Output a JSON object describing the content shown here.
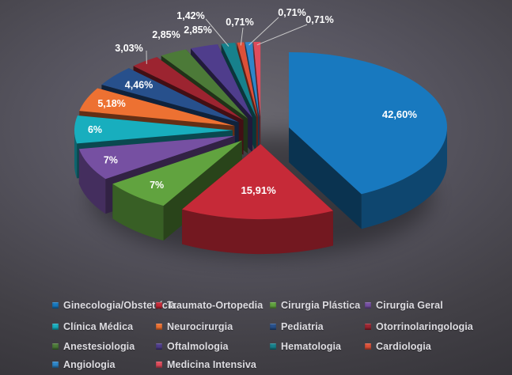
{
  "chart_data": {
    "type": "pie",
    "style": "3d-exploded",
    "unit": "%",
    "decimal_separator": ",",
    "title": "",
    "legend_position": "bottom",
    "label_color": "#FFFFFF",
    "leader_line_color": "#C9C9C9",
    "series": [
      {
        "name": "Ginecologia/Obstetrícia",
        "value": 42.6,
        "label": "42,60%",
        "color": "#1879BF"
      },
      {
        "name": "Traumato-Ortopedia",
        "value": 15.91,
        "label": "15,91%",
        "color": "#C62A38"
      },
      {
        "name": "Cirurgia Plástica",
        "value": 7.0,
        "label": "7%",
        "color": "#61A33F"
      },
      {
        "name": "Cirurgia Geral",
        "value": 7.0,
        "label": "7%",
        "color": "#7650A2"
      },
      {
        "name": "Clínica Médica",
        "value": 6.0,
        "label": "6%",
        "color": "#18AEBE"
      },
      {
        "name": "Neurocirurgia",
        "value": 5.18,
        "label": "5,18%",
        "color": "#ED7132"
      },
      {
        "name": "Pediatria",
        "value": 4.46,
        "label": "4,46%",
        "color": "#27508C"
      },
      {
        "name": "Otorrinolaringologia",
        "value": 3.03,
        "label": "3,03%",
        "color": "#9C2430"
      },
      {
        "name": "Anestesiologia",
        "value": 2.85,
        "label": "2,85%",
        "color": "#4C7A38"
      },
      {
        "name": "Oftalmologia",
        "value": 2.85,
        "label": "2,85%",
        "color": "#4F3D8C"
      },
      {
        "name": "Hematologia",
        "value": 1.42,
        "label": "1,42%",
        "color": "#17818C"
      },
      {
        "name": "Cardiologia",
        "value": 0.71,
        "label": "0,71%",
        "color": "#DD5038"
      },
      {
        "name": "Angiologia",
        "value": 0.71,
        "label": "0,71%",
        "color": "#2E86C8"
      },
      {
        "name": "Medicina Intensiva",
        "value": 0.71,
        "label": "0,71%",
        "color": "#E04C5C"
      }
    ]
  }
}
